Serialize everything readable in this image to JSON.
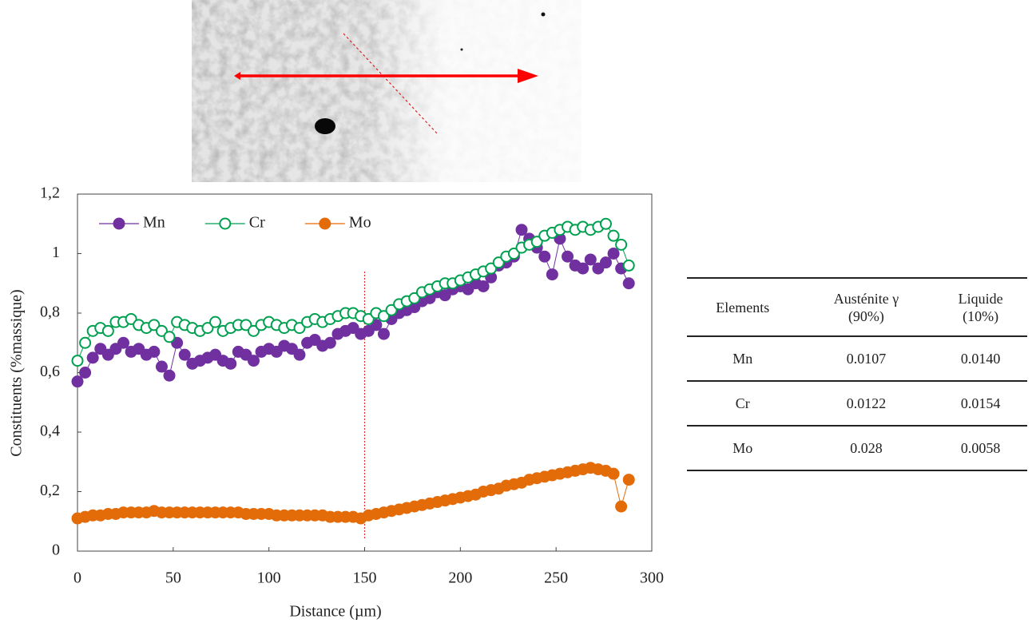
{
  "chart_data": {
    "type": "scatter-line",
    "xlabel": "Distance (µm)",
    "ylabel": "Constituents (%massique)",
    "x": [
      0,
      4,
      8,
      12,
      16,
      20,
      24,
      28,
      32,
      36,
      40,
      44,
      48,
      52,
      56,
      60,
      64,
      68,
      72,
      76,
      80,
      84,
      88,
      92,
      96,
      100,
      104,
      108,
      112,
      116,
      120,
      124,
      128,
      132,
      136,
      140,
      144,
      148,
      152,
      156,
      160,
      164,
      168,
      172,
      176,
      180,
      184,
      188,
      192,
      196,
      200,
      204,
      208,
      212,
      216,
      220,
      224,
      228,
      232,
      236,
      240,
      244,
      248,
      252,
      256,
      260,
      264,
      268,
      272,
      276,
      280,
      284,
      288
    ],
    "series": [
      {
        "name": "Mn",
        "color": "#7030a0",
        "marker": "filled",
        "values": [
          0.57,
          0.6,
          0.65,
          0.68,
          0.66,
          0.68,
          0.7,
          0.67,
          0.68,
          0.66,
          0.67,
          0.62,
          0.59,
          0.7,
          0.66,
          0.63,
          0.64,
          0.65,
          0.66,
          0.64,
          0.63,
          0.67,
          0.66,
          0.64,
          0.67,
          0.68,
          0.67,
          0.69,
          0.68,
          0.66,
          0.7,
          0.71,
          0.69,
          0.7,
          0.73,
          0.74,
          0.75,
          0.73,
          0.74,
          0.76,
          0.73,
          0.78,
          0.8,
          0.81,
          0.82,
          0.84,
          0.85,
          0.87,
          0.86,
          0.88,
          0.89,
          0.88,
          0.9,
          0.89,
          0.92,
          0.96,
          0.97,
          0.99,
          1.08,
          1.05,
          1.02,
          0.99,
          0.93,
          1.05,
          0.99,
          0.96,
          0.95,
          0.98,
          0.95,
          0.97,
          1.0,
          0.95,
          0.9
        ]
      },
      {
        "name": "Cr",
        "color": "#00a050",
        "marker": "open",
        "values": [
          0.64,
          0.7,
          0.74,
          0.75,
          0.74,
          0.77,
          0.77,
          0.78,
          0.76,
          0.75,
          0.76,
          0.74,
          0.72,
          0.77,
          0.76,
          0.75,
          0.74,
          0.75,
          0.77,
          0.74,
          0.75,
          0.76,
          0.76,
          0.74,
          0.76,
          0.77,
          0.76,
          0.75,
          0.76,
          0.75,
          0.77,
          0.78,
          0.77,
          0.78,
          0.79,
          0.8,
          0.8,
          0.79,
          0.78,
          0.8,
          0.79,
          0.81,
          0.83,
          0.84,
          0.85,
          0.87,
          0.88,
          0.89,
          0.9,
          0.9,
          0.91,
          0.92,
          0.93,
          0.94,
          0.95,
          0.97,
          0.99,
          1.0,
          1.02,
          1.03,
          1.04,
          1.06,
          1.07,
          1.08,
          1.09,
          1.08,
          1.09,
          1.08,
          1.09,
          1.1,
          1.06,
          1.03,
          0.96
        ]
      },
      {
        "name": "Mo",
        "color": "#e36c09",
        "marker": "filled",
        "values": [
          0.11,
          0.115,
          0.12,
          0.12,
          0.125,
          0.125,
          0.13,
          0.13,
          0.13,
          0.13,
          0.135,
          0.13,
          0.13,
          0.13,
          0.13,
          0.13,
          0.13,
          0.13,
          0.13,
          0.13,
          0.13,
          0.13,
          0.125,
          0.125,
          0.125,
          0.125,
          0.12,
          0.12,
          0.12,
          0.12,
          0.12,
          0.12,
          0.12,
          0.115,
          0.115,
          0.115,
          0.115,
          0.11,
          0.12,
          0.125,
          0.13,
          0.135,
          0.14,
          0.145,
          0.15,
          0.155,
          0.16,
          0.165,
          0.17,
          0.175,
          0.18,
          0.185,
          0.19,
          0.2,
          0.205,
          0.21,
          0.22,
          0.225,
          0.23,
          0.24,
          0.245,
          0.25,
          0.255,
          0.26,
          0.265,
          0.27,
          0.275,
          0.28,
          0.275,
          0.27,
          0.26,
          0.15,
          0.24
        ]
      }
    ],
    "xlim": [
      0,
      300
    ],
    "xticks": [
      0,
      50,
      100,
      150,
      200,
      250,
      300
    ],
    "ylim": [
      0,
      1.2
    ],
    "yticks": [
      0,
      {
        "value": 0.2,
        "label": "0,2"
      },
      {
        "value": 0.4,
        "label": "0,4"
      },
      {
        "value": 0.6,
        "label": "0,6"
      },
      {
        "value": 0.8,
        "label": "0,8"
      },
      1,
      {
        "value": 1.2,
        "label": "1,2"
      }
    ],
    "vline": 150,
    "vline_color": "#e03030",
    "grid": false,
    "legend": "top-left"
  },
  "table": {
    "header": [
      [
        "Elements"
      ],
      [
        "Austénite γ",
        "(90%)"
      ],
      [
        "Liquide",
        "(10%)"
      ]
    ],
    "rows": [
      [
        "Mn",
        "0.0107",
        "0.0140"
      ],
      [
        "Cr",
        "0.0122",
        "0.0154"
      ],
      [
        "Mo",
        "0.028",
        "0.0058"
      ]
    ]
  }
}
